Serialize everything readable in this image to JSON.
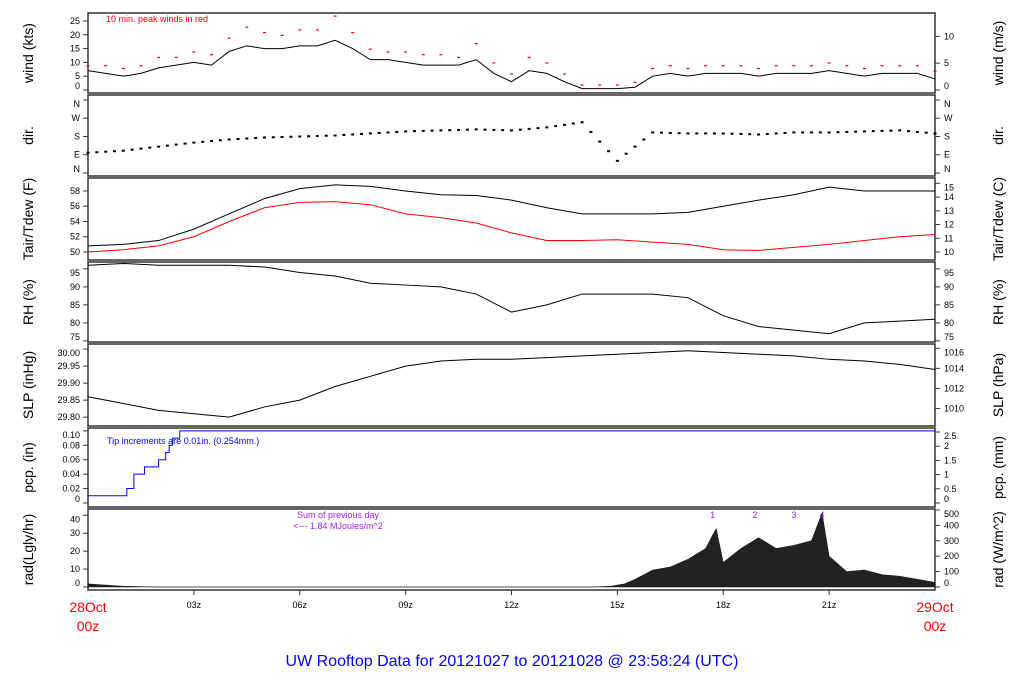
{
  "chart_data": {
    "type": "line",
    "title": "UW Rooftop Data for 20121027  to  20121028 @ 23:58:24  (UTC)",
    "x_unit": "hours UTC",
    "xlim": [
      0,
      24
    ],
    "x_ticks": [
      {
        "h": 3,
        "label": "03z"
      },
      {
        "h": 6,
        "label": "06z"
      },
      {
        "h": 9,
        "label": "09z"
      },
      {
        "h": 12,
        "label": "12z"
      },
      {
        "h": 15,
        "label": "15z"
      },
      {
        "h": 18,
        "label": "18z"
      },
      {
        "h": 21,
        "label": "21z"
      }
    ],
    "x_start": {
      "day": "28Oct",
      "hour": "00z"
    },
    "x_end": {
      "day": "29Oct",
      "hour": "00z"
    },
    "colors": {
      "line": "#000000",
      "peak": "#ff0000",
      "dew": "#ff0000",
      "pcp": "#0000ff",
      "note": "#a020f0",
      "title": "#0000ff",
      "date": "#ff0000"
    },
    "panels": [
      {
        "id": "wind",
        "ylabel": "wind (kts)",
        "ylabel_right": "wind (m/s)",
        "ylim": [
          0,
          25
        ],
        "ticks_left": [
          "0",
          "5",
          "10",
          "15",
          "20",
          "25"
        ],
        "ticks_right": [
          "0",
          "5",
          "10"
        ],
        "annotation": "10 min. peak winds in red",
        "series": [
          {
            "name": "wind",
            "hours_step": 0.5,
            "values": [
              7,
              6,
              5,
              6,
              8,
              9,
              10,
              9,
              14,
              16,
              15,
              15,
              16,
              16,
              18,
              15,
              11,
              11,
              10,
              9,
              9,
              9,
              11,
              6,
              3,
              7,
              6,
              3,
              0.5,
              0.5,
              0.5,
              1,
              5,
              6,
              5,
              6,
              6,
              6,
              5,
              6,
              6,
              6,
              7,
              6,
              5,
              6,
              6,
              6,
              4
            ]
          },
          {
            "name": "peak",
            "hours_step": 0.5,
            "values": [
              9,
              9,
              8,
              9,
              12,
              12,
              14,
              13,
              19,
              23,
              21,
              20,
              22,
              22,
              27,
              21,
              15,
              14,
              14,
              13,
              13,
              12,
              17,
              10,
              6,
              12,
              10,
              6,
              2,
              2,
              2,
              3,
              8,
              9,
              8,
              9,
              9,
              9,
              8,
              9,
              9,
              9,
              10,
              9,
              8,
              9,
              9,
              9,
              7
            ]
          }
        ]
      },
      {
        "id": "dir",
        "ylabel": "dir.",
        "ylabel_right": "dir.",
        "ylim": [
          0,
          360
        ],
        "ticks_left": [
          "N",
          "E",
          "S",
          "W",
          "N"
        ],
        "ticks_right": [
          "N",
          "E",
          "S",
          "W",
          "N"
        ],
        "series": [
          {
            "name": "direction_deg",
            "hours_step": 1,
            "values": [
              100,
              110,
              130,
              150,
              165,
              175,
              180,
              185,
              195,
              205,
              210,
              215,
              210,
              225,
              250,
              60,
              200,
              195,
              195,
              190,
              200,
              200,
              205,
              210,
              195
            ]
          }
        ]
      },
      {
        "id": "temp",
        "ylabel": "Tair/Tdew (F)",
        "ylabel_right": "Tair/Tdew (C)",
        "ylim": [
          50,
          58
        ],
        "ticks_left": [
          "50",
          "52",
          "54",
          "56",
          "58"
        ],
        "ticks_right": [
          "10",
          "11",
          "12",
          "13",
          "14",
          "15"
        ],
        "series": [
          {
            "name": "Tair",
            "hours_step": 1,
            "values": [
              50.8,
              51,
              51.5,
              53,
              55,
              57,
              58.3,
              58.8,
              58.6,
              58,
              57.5,
              57.4,
              56.8,
              55.8,
              55,
              55,
              55,
              55.2,
              56,
              56.8,
              57.5,
              58.5,
              58,
              58,
              58
            ]
          },
          {
            "name": "Tdew",
            "hours_step": 1,
            "values": [
              50,
              50.3,
              50.8,
              52,
              54,
              55.8,
              56.5,
              56.6,
              56.2,
              55,
              54.5,
              53.8,
              52.5,
              51.5,
              51.5,
              51.6,
              51.3,
              51,
              50.3,
              50.2,
              50.6,
              51,
              51.5,
              52,
              52.3
            ]
          }
        ]
      },
      {
        "id": "rh",
        "ylabel": "RH (%)",
        "ylabel_right": "RH (%)",
        "ylim": [
          75,
          95
        ],
        "ticks_left": [
          "75",
          "80",
          "85",
          "90",
          "95"
        ],
        "ticks_right": [
          "75",
          "80",
          "85",
          "90",
          "95"
        ],
        "series": [
          {
            "name": "RH",
            "hours_step": 1,
            "values": [
              96,
              96.5,
              96,
              96,
              96,
              95.5,
              94,
              93,
              91,
              90.5,
              90,
              88,
              83,
              85,
              88,
              88,
              88,
              87,
              82,
              79,
              78,
              77,
              80,
              80.5,
              81
            ]
          }
        ]
      },
      {
        "id": "slp",
        "ylabel": "SLP (inHg)",
        "ylabel_right": "SLP (hPa)",
        "ylim": [
          29.8,
          30.0
        ],
        "ticks_left": [
          "29.80",
          "29.85",
          "29.90",
          "29.95",
          "30.00"
        ],
        "ticks_right": [
          "1010",
          "1012",
          "1014",
          "1016"
        ],
        "series": [
          {
            "name": "SLP",
            "hours_step": 1,
            "values": [
              29.86,
              29.84,
              29.82,
              29.81,
              29.8,
              29.83,
              29.85,
              29.89,
              29.92,
              29.95,
              29.965,
              29.97,
              29.97,
              29.975,
              29.98,
              29.985,
              29.99,
              29.995,
              29.99,
              29.985,
              29.98,
              29.97,
              29.965,
              29.955,
              29.94
            ]
          }
        ]
      },
      {
        "id": "pcp",
        "ylabel": "pcp. (in)",
        "ylabel_right": "pcp. (mm)",
        "ylim": [
          0,
          0.1
        ],
        "ticks_left": [
          "0",
          "0.02",
          "0.04",
          "0.06",
          "0.08",
          "0.10"
        ],
        "ticks_right": [
          "0",
          "0.5",
          "1",
          "1.5",
          "2",
          "2.5"
        ],
        "annotation": "Tip increments are 0.01in. (0.254mm.)",
        "series": [
          {
            "name": "pcp_step",
            "points": [
              [
                0,
                0.01
              ],
              [
                1.1,
                0.02
              ],
              [
                1.3,
                0.04
              ],
              [
                1.6,
                0.05
              ],
              [
                2.0,
                0.06
              ],
              [
                2.2,
                0.07
              ],
              [
                2.3,
                0.08
              ],
              [
                2.4,
                0.09
              ],
              [
                2.6,
                0.1
              ],
              [
                24,
                0.1
              ]
            ]
          }
        ]
      },
      {
        "id": "rad",
        "ylabel": "rad(Lgly/hr)",
        "ylabel_right": "rad (W/m^2)",
        "ylim": [
          0,
          500
        ],
        "ticks_left": [
          "0",
          "10",
          "20",
          "30",
          "40"
        ],
        "ticks_right": [
          "0",
          "100",
          "200",
          "300",
          "400",
          "500"
        ],
        "annotation_lines": [
          "Sum of previous day",
          "<--- 1.84 MJoules/m^2"
        ],
        "markers": [
          {
            "h": 17.7,
            "label": "1"
          },
          {
            "h": 18.9,
            "label": "2"
          },
          {
            "h": 20.0,
            "label": "3"
          },
          {
            "h": 20.8,
            "label": "4"
          }
        ],
        "series": [
          {
            "name": "radiation_Wm2",
            "points": [
              [
                0,
                20
              ],
              [
                1,
                5
              ],
              [
                2,
                0
              ],
              [
                14.3,
                0
              ],
              [
                14.8,
                5
              ],
              [
                15.2,
                20
              ],
              [
                15.5,
                50
              ],
              [
                16,
                110
              ],
              [
                16.5,
                130
              ],
              [
                17,
                180
              ],
              [
                17.5,
                250
              ],
              [
                17.8,
                380
              ],
              [
                18,
                160
              ],
              [
                18.5,
                250
              ],
              [
                19,
                320
              ],
              [
                19.5,
                250
              ],
              [
                20,
                270
              ],
              [
                20.5,
                300
              ],
              [
                20.8,
                480
              ],
              [
                21,
                200
              ],
              [
                21.5,
                100
              ],
              [
                22,
                110
              ],
              [
                22.5,
                80
              ],
              [
                23,
                70
              ],
              [
                23.5,
                50
              ],
              [
                24,
                30
              ]
            ]
          }
        ]
      }
    ]
  }
}
